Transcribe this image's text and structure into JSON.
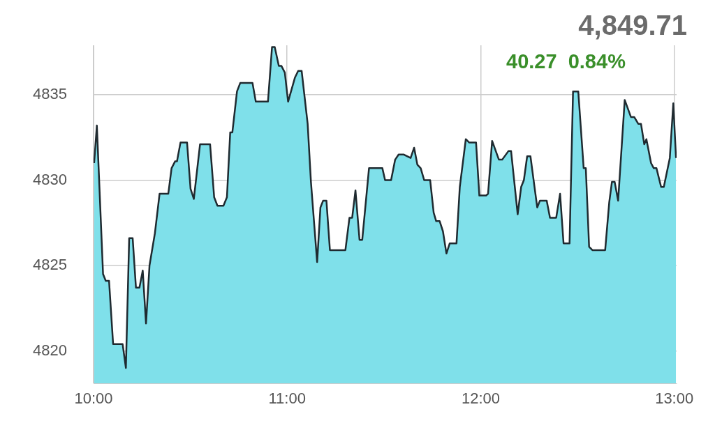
{
  "chart_data": {
    "type": "area",
    "title": "4,849.71",
    "subtitle": "40.27  0.84%",
    "x": [
      10.003,
      10.017,
      10.049,
      10.063,
      10.08,
      10.101,
      10.15,
      10.167,
      10.184,
      10.202,
      10.219,
      10.237,
      10.254,
      10.271,
      10.289,
      10.317,
      10.341,
      10.386,
      10.403,
      10.421,
      10.431,
      10.449,
      10.483,
      10.501,
      10.518,
      10.55,
      10.602,
      10.623,
      10.64,
      10.671,
      10.689,
      10.706,
      10.717,
      10.741,
      10.758,
      10.821,
      10.838,
      10.901,
      10.922,
      10.936,
      10.957,
      10.97,
      10.988,
      11.005,
      11.04,
      11.057,
      11.075,
      11.106,
      11.123,
      11.155,
      11.172,
      11.186,
      11.203,
      11.221,
      11.301,
      11.322,
      11.336,
      11.353,
      11.374,
      11.388,
      11.423,
      11.492,
      11.506,
      11.537,
      11.558,
      11.576,
      11.603,
      11.638,
      11.656,
      11.673,
      11.69,
      11.708,
      11.739,
      11.757,
      11.77,
      11.788,
      11.805,
      11.823,
      11.84,
      11.875,
      11.892,
      11.923,
      11.941,
      11.976,
      11.993,
      12.028,
      12.038,
      12.059,
      12.094,
      12.111,
      12.143,
      12.157,
      12.191,
      12.209,
      12.223,
      12.24,
      12.257,
      12.292,
      12.306,
      12.341,
      12.358,
      12.39,
      12.41,
      12.428,
      12.459,
      12.477,
      12.504,
      12.532,
      12.543,
      12.56,
      12.577,
      12.643,
      12.664,
      12.678,
      12.692,
      12.71,
      12.744,
      12.776,
      12.793,
      12.814,
      12.828,
      12.845,
      12.856,
      12.88,
      12.894,
      12.908,
      12.932,
      12.946,
      12.977,
      12.995,
      13.009
    ],
    "series": [
      {
        "color": "#7fe0ea",
        "values": [
          4831.0,
          4833.2,
          4824.5,
          4824.1,
          4824.1,
          4820.4,
          4820.4,
          4819.0,
          4826.6,
          4826.6,
          4823.7,
          4823.7,
          4824.7,
          4821.6,
          4825.0,
          4826.9,
          4829.2,
          4829.2,
          4830.7,
          4831.1,
          4831.1,
          4832.2,
          4832.2,
          4829.5,
          4828.9,
          4832.1,
          4832.1,
          4829.0,
          4828.5,
          4828.5,
          4829.0,
          4832.8,
          4832.8,
          4835.2,
          4835.7,
          4835.7,
          4834.6,
          4834.6,
          4837.8,
          4837.8,
          4836.7,
          4836.7,
          4836.3,
          4834.6,
          4836.0,
          4836.4,
          4836.4,
          4833.3,
          4829.9,
          4825.2,
          4828.4,
          4828.8,
          4828.8,
          4825.9,
          4825.9,
          4827.8,
          4827.8,
          4829.4,
          4826.5,
          4826.5,
          4830.7,
          4830.7,
          4830.0,
          4830.0,
          4831.2,
          4831.5,
          4831.5,
          4831.3,
          4831.9,
          4830.9,
          4830.7,
          4830.0,
          4830.0,
          4828.1,
          4827.6,
          4827.6,
          4827.0,
          4825.7,
          4826.3,
          4826.3,
          4829.6,
          4832.4,
          4832.2,
          4832.2,
          4829.1,
          4829.1,
          4829.2,
          4832.3,
          4831.2,
          4831.2,
          4831.7,
          4831.7,
          4828.0,
          4829.6,
          4830.0,
          4831.4,
          4831.4,
          4828.4,
          4828.8,
          4828.8,
          4827.8,
          4827.8,
          4829.2,
          4826.3,
          4826.3,
          4835.2,
          4835.2,
          4830.7,
          4830.7,
          4826.1,
          4825.9,
          4825.9,
          4828.7,
          4829.9,
          4829.9,
          4828.8,
          4834.7,
          4833.7,
          4833.7,
          4833.3,
          4833.3,
          4832.1,
          4832.4,
          4831.0,
          4830.7,
          4830.7,
          4829.6,
          4829.6,
          4831.3,
          4834.5,
          4831.3
        ]
      }
    ],
    "xlim": [
      10,
      13.012
    ],
    "xticks": [
      {
        "value": 10,
        "label": "10:00"
      },
      {
        "value": 11,
        "label": "11:00"
      },
      {
        "value": 12,
        "label": "12:00"
      },
      {
        "value": 13,
        "label": "13:00"
      }
    ],
    "ylim": [
      4818.1,
      4837.9
    ],
    "yticks": [
      4820,
      4825,
      4830,
      4835
    ],
    "grid": true
  }
}
